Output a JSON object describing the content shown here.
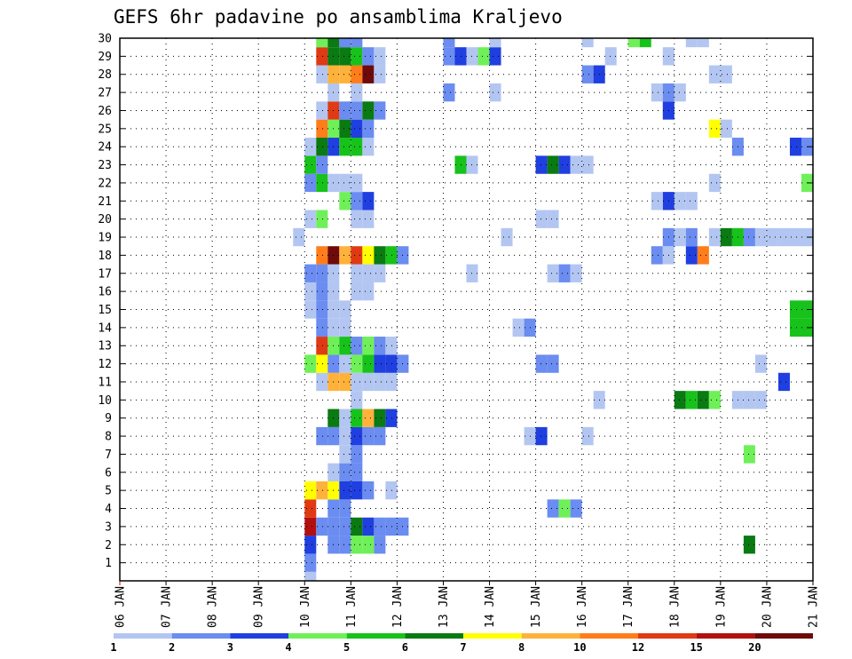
{
  "chart_data": {
    "type": "heatmap",
    "title": "GEFS 6hr padavine po ansamblima Kraljevo",
    "x_tick_labels": [
      "06 JAN",
      "07 JAN",
      "08 JAN",
      "09 JAN",
      "10 JAN",
      "11 JAN",
      "12 JAN",
      "13 JAN",
      "14 JAN",
      "15 JAN",
      "16 JAN",
      "17 JAN",
      "18 JAN",
      "19 JAN",
      "20 JAN",
      "21 JAN"
    ],
    "x_range_days": [
      0,
      15
    ],
    "y_tick_labels": [
      "1",
      "2",
      "3",
      "4",
      "5",
      "6",
      "7",
      "8",
      "9",
      "10",
      "11",
      "12",
      "13",
      "14",
      "15",
      "16",
      "17",
      "18",
      "19",
      "20",
      "21",
      "22",
      "23",
      "24",
      "25",
      "26",
      "27",
      "28",
      "29",
      "30"
    ],
    "y_range": [
      0,
      30
    ],
    "grid": "dotted",
    "colorbar": {
      "labels": [
        "1",
        "2",
        "3",
        "4",
        "5",
        "6",
        "7",
        "8",
        "10",
        "12",
        "15",
        "20"
      ],
      "colors": [
        "#b3c6f2",
        "#6b8cf0",
        "#1f3fe0",
        "#6ff059",
        "#17c21b",
        "#0a7a12",
        "#ffff00",
        "#ffb23b",
        "#ff7d1a",
        "#e03a14",
        "#b30f0f",
        "#6e0a0a"
      ]
    },
    "cells": [
      [
        0,
        4.0,
        1
      ],
      [
        1,
        4.0,
        2
      ],
      [
        1,
        20.0,
        2
      ],
      [
        1,
        20.25,
        2
      ],
      [
        2,
        4.0,
        3
      ],
      [
        2,
        4.5,
        2
      ],
      [
        2,
        4.75,
        2
      ],
      [
        2,
        5.0,
        4
      ],
      [
        2,
        5.25,
        4
      ],
      [
        2,
        5.5,
        2
      ],
      [
        2,
        13.5,
        6
      ],
      [
        3,
        4.0,
        11
      ],
      [
        3,
        4.25,
        2
      ],
      [
        3,
        4.5,
        2
      ],
      [
        3,
        4.75,
        2
      ],
      [
        3,
        5.0,
        6
      ],
      [
        3,
        5.25,
        3
      ],
      [
        3,
        5.5,
        2
      ],
      [
        3,
        5.75,
        2
      ],
      [
        3,
        6.0,
        2
      ],
      [
        4,
        4.0,
        10
      ],
      [
        4,
        4.5,
        2
      ],
      [
        4,
        4.75,
        2
      ],
      [
        4,
        9.25,
        2
      ],
      [
        4,
        9.5,
        4
      ],
      [
        4,
        9.75,
        2
      ],
      [
        5,
        4.0,
        7
      ],
      [
        5,
        4.25,
        8
      ],
      [
        5,
        4.5,
        7
      ],
      [
        5,
        4.75,
        3
      ],
      [
        5,
        5.0,
        3
      ],
      [
        5,
        5.25,
        2
      ],
      [
        5,
        5.75,
        1
      ],
      [
        6,
        4.5,
        1
      ],
      [
        6,
        4.75,
        2
      ],
      [
        6,
        5.0,
        2
      ],
      [
        7,
        4.75,
        1
      ],
      [
        7,
        5.0,
        2
      ],
      [
        7,
        13.5,
        4
      ],
      [
        8,
        4.25,
        2
      ],
      [
        8,
        4.5,
        2
      ],
      [
        8,
        4.75,
        1
      ],
      [
        8,
        5.0,
        3
      ],
      [
        8,
        5.25,
        2
      ],
      [
        8,
        5.5,
        2
      ],
      [
        8,
        8.75,
        1
      ],
      [
        8,
        9.0,
        3
      ],
      [
        8,
        10.0,
        1
      ],
      [
        9,
        4.5,
        6
      ],
      [
        9,
        4.75,
        1
      ],
      [
        9,
        5.0,
        5
      ],
      [
        9,
        5.25,
        8
      ],
      [
        9,
        5.5,
        6
      ],
      [
        9,
        5.75,
        3
      ],
      [
        9,
        15.0,
        6
      ],
      [
        10,
        5.0,
        1
      ],
      [
        10,
        10.25,
        1
      ],
      [
        10,
        12.0,
        6
      ],
      [
        10,
        12.25,
        5
      ],
      [
        10,
        12.5,
        6
      ],
      [
        10,
        12.75,
        4
      ],
      [
        10,
        13.25,
        1
      ],
      [
        10,
        13.5,
        1
      ],
      [
        10,
        13.75,
        1
      ],
      [
        11,
        4.25,
        1
      ],
      [
        11,
        4.5,
        8
      ],
      [
        11,
        4.75,
        8
      ],
      [
        11,
        5.0,
        1
      ],
      [
        11,
        5.25,
        1
      ],
      [
        11,
        5.5,
        1
      ],
      [
        11,
        5.75,
        1
      ],
      [
        11,
        14.25,
        3
      ],
      [
        12,
        4.0,
        4
      ],
      [
        12,
        4.25,
        7
      ],
      [
        12,
        4.5,
        2
      ],
      [
        12,
        4.75,
        1
      ],
      [
        12,
        5.0,
        4
      ],
      [
        12,
        5.25,
        5
      ],
      [
        12,
        5.5,
        3
      ],
      [
        12,
        5.75,
        3
      ],
      [
        12,
        6.0,
        2
      ],
      [
        12,
        9.0,
        2
      ],
      [
        12,
        9.25,
        2
      ],
      [
        12,
        13.75,
        1
      ],
      [
        13,
        4.25,
        10
      ],
      [
        13,
        4.5,
        4
      ],
      [
        13,
        4.75,
        5
      ],
      [
        13,
        5.0,
        2
      ],
      [
        13,
        5.25,
        4
      ],
      [
        13,
        5.5,
        2
      ],
      [
        13,
        5.75,
        1
      ],
      [
        14,
        4.25,
        2
      ],
      [
        14,
        4.5,
        1
      ],
      [
        14,
        4.75,
        1
      ],
      [
        14,
        8.5,
        1
      ],
      [
        14,
        8.75,
        2
      ],
      [
        14,
        14.5,
        5
      ],
      [
        14,
        14.75,
        5
      ],
      [
        14,
        15.0,
        2
      ],
      [
        15,
        4.0,
        1
      ],
      [
        15,
        4.25,
        2
      ],
      [
        15,
        4.5,
        1
      ],
      [
        15,
        4.75,
        1
      ],
      [
        15,
        14.5,
        5
      ],
      [
        15,
        14.75,
        5
      ],
      [
        15,
        15.0,
        2
      ],
      [
        16,
        4.0,
        1
      ],
      [
        16,
        4.25,
        2
      ],
      [
        16,
        4.5,
        1
      ],
      [
        16,
        5.0,
        1
      ],
      [
        16,
        5.25,
        1
      ],
      [
        17,
        4.0,
        2
      ],
      [
        17,
        4.25,
        2
      ],
      [
        17,
        4.5,
        1
      ],
      [
        17,
        5.0,
        1
      ],
      [
        17,
        5.25,
        1
      ],
      [
        17,
        5.5,
        1
      ],
      [
        17,
        7.5,
        1
      ],
      [
        17,
        9.25,
        1
      ],
      [
        17,
        9.5,
        2
      ],
      [
        17,
        9.75,
        1
      ],
      [
        18,
        4.25,
        9
      ],
      [
        18,
        4.5,
        12
      ],
      [
        18,
        4.75,
        8
      ],
      [
        18,
        5.0,
        10
      ],
      [
        18,
        5.25,
        7
      ],
      [
        18,
        5.5,
        6
      ],
      [
        18,
        5.75,
        5
      ],
      [
        18,
        6.0,
        2
      ],
      [
        18,
        11.5,
        2
      ],
      [
        18,
        11.75,
        1
      ],
      [
        18,
        12.25,
        3
      ],
      [
        18,
        12.5,
        9
      ],
      [
        19,
        3.75,
        1
      ],
      [
        19,
        8.25,
        1
      ],
      [
        19,
        11.75,
        2
      ],
      [
        19,
        12.0,
        1
      ],
      [
        19,
        12.25,
        2
      ],
      [
        19,
        12.75,
        1
      ],
      [
        19,
        13.0,
        6
      ],
      [
        19,
        13.25,
        5
      ],
      [
        19,
        13.5,
        2
      ],
      [
        19,
        13.75,
        1
      ],
      [
        19,
        14.0,
        1
      ],
      [
        19,
        14.25,
        1
      ],
      [
        19,
        14.5,
        1
      ],
      [
        19,
        14.75,
        1
      ],
      [
        20,
        4.0,
        1
      ],
      [
        20,
        4.25,
        4
      ],
      [
        20,
        5.0,
        1
      ],
      [
        20,
        5.25,
        1
      ],
      [
        20,
        9.0,
        1
      ],
      [
        20,
        9.25,
        1
      ],
      [
        21,
        4.75,
        4
      ],
      [
        21,
        5.0,
        2
      ],
      [
        21,
        5.25,
        3
      ],
      [
        21,
        11.75,
        3
      ],
      [
        21,
        11.5,
        1
      ],
      [
        21,
        12.0,
        1
      ],
      [
        21,
        12.25,
        1
      ],
      [
        22,
        4.0,
        2
      ],
      [
        22,
        4.25,
        5
      ],
      [
        22,
        4.5,
        1
      ],
      [
        22,
        4.75,
        1
      ],
      [
        22,
        5.0,
        1
      ],
      [
        22,
        12.75,
        1
      ],
      [
        22,
        14.75,
        4
      ],
      [
        23,
        4.0,
        5
      ],
      [
        23,
        4.25,
        2
      ],
      [
        23,
        7.25,
        5
      ],
      [
        23,
        7.5,
        1
      ],
      [
        23,
        9.0,
        3
      ],
      [
        23,
        9.25,
        6
      ],
      [
        23,
        9.5,
        3
      ],
      [
        23,
        9.75,
        1
      ],
      [
        23,
        10.0,
        1
      ],
      [
        24,
        4.0,
        1
      ],
      [
        24,
        4.25,
        6
      ],
      [
        24,
        4.5,
        3
      ],
      [
        24,
        4.75,
        5
      ],
      [
        24,
        5.0,
        5
      ],
      [
        24,
        5.25,
        1
      ],
      [
        24,
        13.25,
        2
      ],
      [
        24,
        14.5,
        3
      ],
      [
        24,
        14.75,
        2
      ],
      [
        25,
        4.25,
        9
      ],
      [
        25,
        4.5,
        4
      ],
      [
        25,
        4.75,
        6
      ],
      [
        25,
        5.0,
        3
      ],
      [
        25,
        5.25,
        2
      ],
      [
        25,
        12.75,
        7
      ],
      [
        25,
        13.0,
        1
      ],
      [
        25,
        15.0,
        1
      ],
      [
        25,
        15.25,
        6
      ],
      [
        26,
        4.25,
        1
      ],
      [
        26,
        4.5,
        10
      ],
      [
        26,
        4.75,
        2
      ],
      [
        26,
        5.0,
        2
      ],
      [
        26,
        5.25,
        6
      ],
      [
        26,
        5.5,
        2
      ],
      [
        26,
        11.75,
        3
      ],
      [
        27,
        4.5,
        1
      ],
      [
        27,
        5.0,
        1
      ],
      [
        27,
        7.0,
        2
      ],
      [
        27,
        8.0,
        1
      ],
      [
        27,
        11.5,
        1
      ],
      [
        27,
        11.75,
        2
      ],
      [
        27,
        12.0,
        1
      ],
      [
        28,
        4.25,
        1
      ],
      [
        28,
        4.5,
        8
      ],
      [
        28,
        4.75,
        8
      ],
      [
        28,
        5.0,
        9
      ],
      [
        28,
        5.25,
        12
      ],
      [
        28,
        5.5,
        1
      ],
      [
        28,
        10.0,
        2
      ],
      [
        28,
        10.25,
        3
      ],
      [
        28,
        12.75,
        1
      ],
      [
        28,
        13.0,
        1
      ],
      [
        29,
        4.25,
        10
      ],
      [
        29,
        4.5,
        6
      ],
      [
        29,
        4.75,
        6
      ],
      [
        29,
        5.0,
        5
      ],
      [
        29,
        5.25,
        2
      ],
      [
        29,
        5.5,
        1
      ],
      [
        29,
        7.0,
        2
      ],
      [
        29,
        7.25,
        3
      ],
      [
        29,
        7.5,
        1
      ],
      [
        29,
        7.75,
        4
      ],
      [
        29,
        8.0,
        3
      ],
      [
        29,
        10.5,
        1
      ],
      [
        29,
        11.75,
        1
      ],
      [
        30,
        4.25,
        4
      ],
      [
        30,
        4.5,
        6
      ],
      [
        30,
        4.75,
        2
      ],
      [
        30,
        5.0,
        2
      ],
      [
        30,
        7.0,
        2
      ],
      [
        30,
        8.0,
        1
      ],
      [
        30,
        10.0,
        1
      ],
      [
        30,
        11.0,
        4
      ],
      [
        30,
        11.25,
        5
      ],
      [
        30,
        12.25,
        1
      ],
      [
        30,
        12.5,
        1
      ]
    ]
  }
}
